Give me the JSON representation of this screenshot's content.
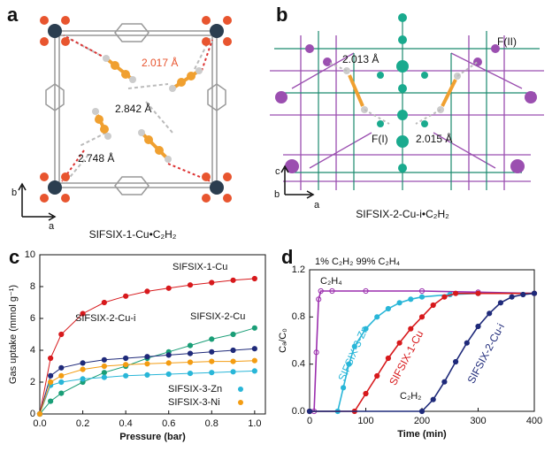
{
  "structures": [
    {
      "panel": "a",
      "labels": [
        "2.017 Å",
        "2.842 Å",
        "2.748 Å"
      ],
      "axes": [
        "b",
        "a"
      ],
      "caption": "SIFSIX-1-Cu•C₂H₂"
    },
    {
      "panel": "b",
      "labels": [
        "2.013 Å",
        "F(II)",
        "F(I)",
        "2.015 Å"
      ],
      "axes": [
        "c",
        "b",
        "a"
      ],
      "caption": "SIFSIX-2-Cu-i•C₂H₂"
    }
  ],
  "chart_data": [
    {
      "type": "scatter",
      "panel": "c",
      "xlabel": "Pressure (bar)",
      "ylabel": "Gas uptake (mmol g⁻¹)",
      "x": [
        0,
        0.05,
        0.1,
        0.2,
        0.3,
        0.4,
        0.5,
        0.6,
        0.7,
        0.8,
        0.9,
        1.0
      ],
      "xlim": [
        0,
        1.05
      ],
      "xticks": [
        {
          "value": 0,
          "label": "0.0"
        },
        0.2,
        0.4,
        0.6,
        0.8,
        {
          "value": 1,
          "label": "1.0"
        }
      ],
      "ylim": [
        0,
        10
      ],
      "yticks": [
        0,
        2,
        4,
        6,
        8,
        10
      ],
      "series": [
        {
          "name": "SIFSIX-1-Cu",
          "color": "#d7191c",
          "values": [
            0,
            3.5,
            5.0,
            6.3,
            7.0,
            7.4,
            7.7,
            7.9,
            8.1,
            8.25,
            8.4,
            8.5
          ]
        },
        {
          "name": "SIFSIX-2-Cu",
          "color": "#1a9e77",
          "values": [
            0,
            0.8,
            1.3,
            2.0,
            2.6,
            3.0,
            3.5,
            3.9,
            4.3,
            4.7,
            5.0,
            5.4
          ]
        },
        {
          "name": "SIFSIX-2-Cu-i",
          "color": "#1f2a7a",
          "values": [
            0,
            2.4,
            2.9,
            3.2,
            3.4,
            3.5,
            3.6,
            3.7,
            3.8,
            3.9,
            4.0,
            4.1
          ]
        },
        {
          "name": "SIFSIX-3-Zn",
          "color": "#29b6d8",
          "values": [
            0,
            1.8,
            2.0,
            2.2,
            2.3,
            2.4,
            2.45,
            2.5,
            2.55,
            2.6,
            2.65,
            2.7
          ]
        },
        {
          "name": "SIFSIX-3-Ni",
          "color": "#f39c12",
          "values": [
            0,
            2.0,
            2.4,
            2.8,
            3.0,
            3.1,
            3.15,
            3.2,
            3.25,
            3.3,
            3.3,
            3.35
          ]
        }
      ]
    },
    {
      "type": "line",
      "panel": "d",
      "xlabel": "Time (min)",
      "ylabel": "Cₐ/C₀",
      "annotations": [
        "1% C₂H₂ 99% C₂H₄",
        "C₂H₄",
        "C₂H₂"
      ],
      "xlim": [
        0,
        400
      ],
      "xticks": [
        0,
        100,
        200,
        300,
        400
      ],
      "ylim": [
        0,
        1.2
      ],
      "yticks": [
        {
          "value": 0,
          "label": "0.0"
        },
        0.4,
        0.8,
        1.2
      ],
      "series": [
        {
          "color": "#9b2fae",
          "x": [
            0,
            8,
            12,
            16,
            20,
            40,
            100,
            200,
            300,
            400
          ],
          "values": [
            0,
            0,
            0.5,
            0.95,
            1.02,
            1.02,
            1.02,
            1.02,
            1.01,
            1.0
          ]
        },
        {
          "name": "SIFSIX-3-Zn",
          "color": "#29b6d8",
          "x": [
            0,
            50,
            60,
            70,
            80,
            100,
            120,
            140,
            160,
            180,
            200,
            250,
            300,
            400
          ],
          "values": [
            0,
            0,
            0.2,
            0.4,
            0.55,
            0.7,
            0.8,
            0.87,
            0.92,
            0.95,
            0.97,
            0.99,
            1.0,
            1.0
          ]
        },
        {
          "name": "SIFSIX-1-Cu",
          "color": "#d7191c",
          "x": [
            0,
            80,
            100,
            120,
            140,
            160,
            180,
            200,
            220,
            240,
            260,
            300,
            400
          ],
          "values": [
            0,
            0,
            0.15,
            0.3,
            0.45,
            0.58,
            0.7,
            0.8,
            0.9,
            0.97,
            1.0,
            1.0,
            1.0
          ]
        },
        {
          "name": "SIFSIX-2-Cu-i",
          "color": "#1f2a7a",
          "x": [
            0,
            200,
            220,
            240,
            260,
            280,
            300,
            320,
            340,
            360,
            380,
            400
          ],
          "values": [
            0,
            0,
            0.1,
            0.25,
            0.42,
            0.58,
            0.72,
            0.83,
            0.92,
            0.97,
            0.99,
            1.0
          ]
        }
      ]
    }
  ]
}
